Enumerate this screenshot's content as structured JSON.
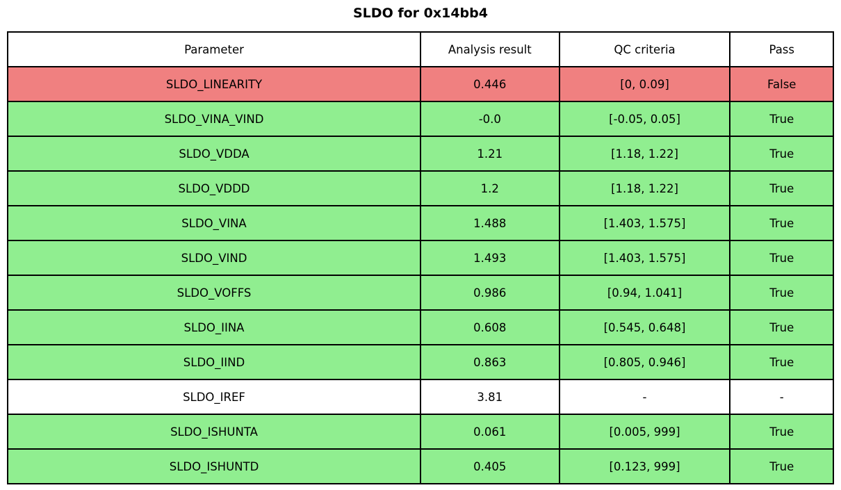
{
  "chart_data": {
    "type": "table",
    "title": "SLDO for 0x14bb4",
    "columns": [
      "Parameter",
      "Analysis result",
      "QC criteria",
      "Pass"
    ],
    "rows": [
      {
        "parameter": "SLDO_LINEARITY",
        "result": "0.446",
        "criteria": "[0, 0.09]",
        "pass": "False",
        "status": "fail"
      },
      {
        "parameter": "SLDO_VINA_VIND",
        "result": "-0.0",
        "criteria": "[-0.05, 0.05]",
        "pass": "True",
        "status": "pass"
      },
      {
        "parameter": "SLDO_VDDA",
        "result": "1.21",
        "criteria": "[1.18, 1.22]",
        "pass": "True",
        "status": "pass"
      },
      {
        "parameter": "SLDO_VDDD",
        "result": "1.2",
        "criteria": "[1.18, 1.22]",
        "pass": "True",
        "status": "pass"
      },
      {
        "parameter": "SLDO_VINA",
        "result": "1.488",
        "criteria": "[1.403, 1.575]",
        "pass": "True",
        "status": "pass"
      },
      {
        "parameter": "SLDO_VIND",
        "result": "1.493",
        "criteria": "[1.403, 1.575]",
        "pass": "True",
        "status": "pass"
      },
      {
        "parameter": "SLDO_VOFFS",
        "result": "0.986",
        "criteria": "[0.94, 1.041]",
        "pass": "True",
        "status": "pass"
      },
      {
        "parameter": "SLDO_IINA",
        "result": "0.608",
        "criteria": "[0.545, 0.648]",
        "pass": "True",
        "status": "pass"
      },
      {
        "parameter": "SLDO_IIND",
        "result": "0.863",
        "criteria": "[0.805, 0.946]",
        "pass": "True",
        "status": "pass"
      },
      {
        "parameter": "SLDO_IREF",
        "result": "3.81",
        "criteria": "-",
        "pass": "-",
        "status": "none"
      },
      {
        "parameter": "SLDO_ISHUNTA",
        "result": "0.061",
        "criteria": "[0.005, 999]",
        "pass": "True",
        "status": "pass"
      },
      {
        "parameter": "SLDO_ISHUNTD",
        "result": "0.405",
        "criteria": "[0.123, 999]",
        "pass": "True",
        "status": "pass"
      }
    ],
    "colors": {
      "fail": "#F08080",
      "pass": "#90EE90",
      "none": "#FFFFFF",
      "border": "#000000",
      "header_background": "#FFFFFF",
      "text": "#000000"
    },
    "layout": {
      "grid": "on",
      "header_row": true,
      "row_count": 12,
      "column_count": 4
    }
  }
}
